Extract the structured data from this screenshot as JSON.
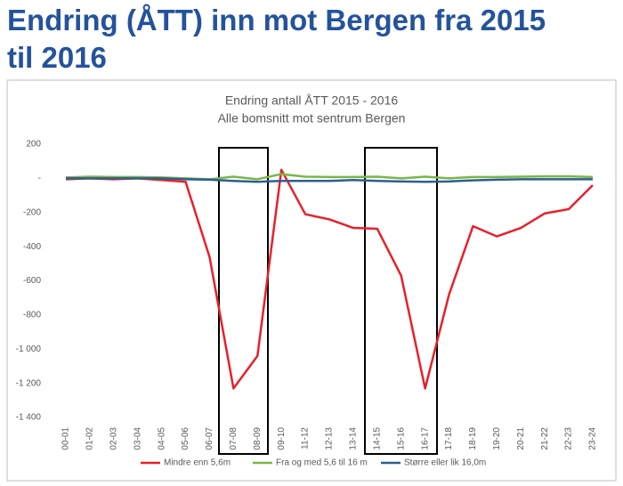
{
  "slide_title": "Endring (ÅTT) inn mot Bergen fra 2015 til 2016",
  "chart_data": {
    "type": "line",
    "title": "Endring antall ÅTT 2015 - 2016",
    "subtitle": "Alle bomsnitt mot sentrum Bergen",
    "categories": [
      "00-01",
      "01-02",
      "02-03",
      "03-04",
      "04-05",
      "05-06",
      "06-07",
      "07-08",
      "08-09",
      "09-10",
      "11-12",
      "12-13",
      "13-14",
      "14-15",
      "15-16",
      "16-17",
      "17-18",
      "18-19",
      "19-20",
      "20-21",
      "21-22",
      "22-23",
      "23-24"
    ],
    "series": [
      {
        "name": "Mindre enn 5,6m",
        "color": "#e8202a",
        "values": [
          -5,
          0,
          -5,
          0,
          -10,
          -20,
          -460,
          -1230,
          -1040,
          50,
          -210,
          -240,
          -290,
          -295,
          -570,
          -1230,
          -680,
          -280,
          -340,
          -290,
          -205,
          -180,
          -40
        ]
      },
      {
        "name": "Fra og med 5,6 til 16 m",
        "color": "#7ab648",
        "values": [
          5,
          10,
          8,
          8,
          5,
          0,
          -5,
          10,
          -5,
          25,
          10,
          8,
          8,
          10,
          0,
          10,
          0,
          8,
          8,
          10,
          12,
          12,
          8
        ]
      },
      {
        "name": "Større eller lik 16,0m",
        "color": "#2e5f8f",
        "values": [
          0,
          0,
          0,
          0,
          0,
          -5,
          -8,
          -15,
          -20,
          -15,
          -15,
          -15,
          -10,
          -15,
          -18,
          -20,
          -18,
          -12,
          -8,
          -5,
          -5,
          -5,
          -5
        ]
      }
    ],
    "ylim": [
      -1400,
      200
    ],
    "yticks": [
      200,
      {
        "value": 0,
        "label": "-"
      },
      -200,
      -400,
      -600,
      -800,
      {
        "value": -1000,
        "label": "-1 000"
      },
      {
        "value": -1200,
        "label": "-1 200"
      },
      {
        "value": -1400,
        "label": "-1 400"
      }
    ],
    "grid": false,
    "legend": "bottom"
  }
}
